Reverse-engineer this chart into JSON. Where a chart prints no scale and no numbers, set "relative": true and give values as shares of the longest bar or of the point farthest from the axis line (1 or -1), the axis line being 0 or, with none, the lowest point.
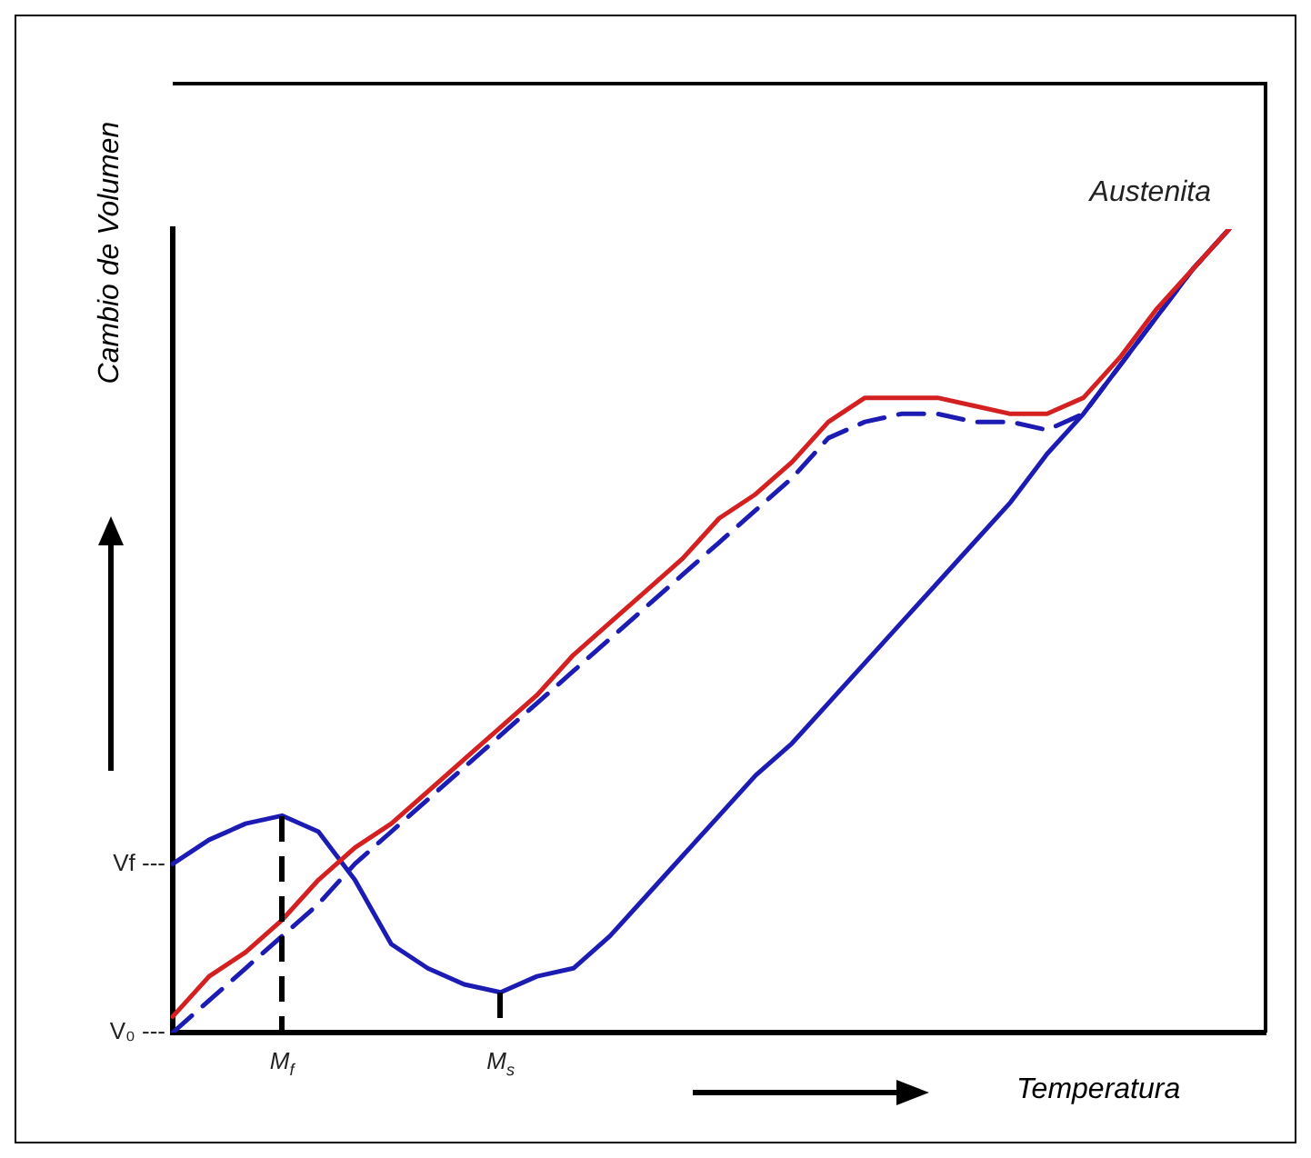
{
  "chart_data": {
    "type": "line",
    "relative": true,
    "marker": "none",
    "xlabel": "Temperatura",
    "ylabel": "Cambio de Volumen",
    "categories": [
      null,
      null,
      null,
      "M$_{f}$",
      null,
      null,
      null,
      null,
      null,
      "M$_{s}$",
      null,
      null,
      null,
      null,
      null,
      null,
      null,
      null,
      null,
      null,
      null,
      null,
      null,
      null,
      null,
      null,
      null,
      null,
      null,
      null,
      null
    ],
    "series": [
      {
        "color": "#1c1cb4",
        "line_style": "solid",
        "values": [
          0.21,
          0.24,
          0.26,
          0.27,
          0.25,
          0.19,
          0.11,
          0.08,
          0.06,
          0.05,
          0.07,
          0.08,
          0.12,
          0.17,
          0.22,
          0.27,
          0.32,
          0.36,
          0.41,
          0.46,
          0.51,
          0.56,
          0.61,
          0.66,
          0.72,
          0.77,
          0.83,
          0.89,
          0.95,
          1.0,
          null
        ]
      },
      {
        "color": "#1c1cb4",
        "line_style": "dashed",
        "values": [
          0,
          0.04,
          0.08,
          0.12,
          0.16,
          0.21,
          0.25,
          0.29,
          0.33,
          0.37,
          0.41,
          0.45,
          0.49,
          0.53,
          0.57,
          0.61,
          0.65,
          0.69,
          0.74,
          0.76,
          0.77,
          0.77,
          0.76,
          0.76,
          0.75,
          0.77,
          0.83,
          0.89,
          0.95,
          1.0,
          null
        ]
      },
      {
        "color": "#d42020",
        "line_style": "solid",
        "values": [
          0.02,
          0.07,
          0.1,
          0.14,
          0.19,
          0.23,
          0.26,
          0.3,
          0.34,
          0.38,
          0.42,
          0.47,
          0.51,
          0.55,
          0.59,
          0.64,
          0.67,
          0.71,
          0.76,
          0.79,
          0.79,
          0.79,
          0.78,
          0.77,
          0.77,
          0.79,
          0.84,
          0.9,
          0.95,
          1.0,
          null
        ]
      }
    ],
    "annotations": [
      "Vf ---",
      "V₀ ---",
      "Austenita"
    ]
  }
}
